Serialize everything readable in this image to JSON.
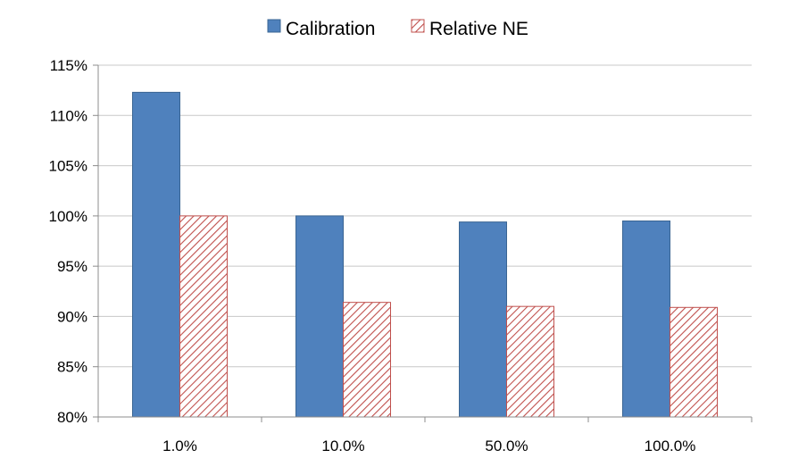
{
  "chart_data": {
    "type": "bar",
    "categories": [
      "1.0%",
      "10.0%",
      "50.0%",
      "100.0%"
    ],
    "series": [
      {
        "name": "Calibration",
        "values": [
          112.3,
          100.0,
          99.4,
          99.5
        ],
        "color": "#4f81bd",
        "pattern": "solid"
      },
      {
        "name": "Relative NE",
        "values": [
          100.0,
          91.4,
          91.0,
          90.9
        ],
        "color": "#c0504d",
        "pattern": "diagonal-hatch"
      }
    ],
    "title": "",
    "xlabel": "",
    "ylabel": "",
    "ylim": [
      80,
      115
    ],
    "yticks": [
      "80%",
      "85%",
      "90%",
      "95%",
      "100%",
      "105%",
      "110%",
      "115%"
    ],
    "grid": true,
    "legend_position": "top-center"
  }
}
